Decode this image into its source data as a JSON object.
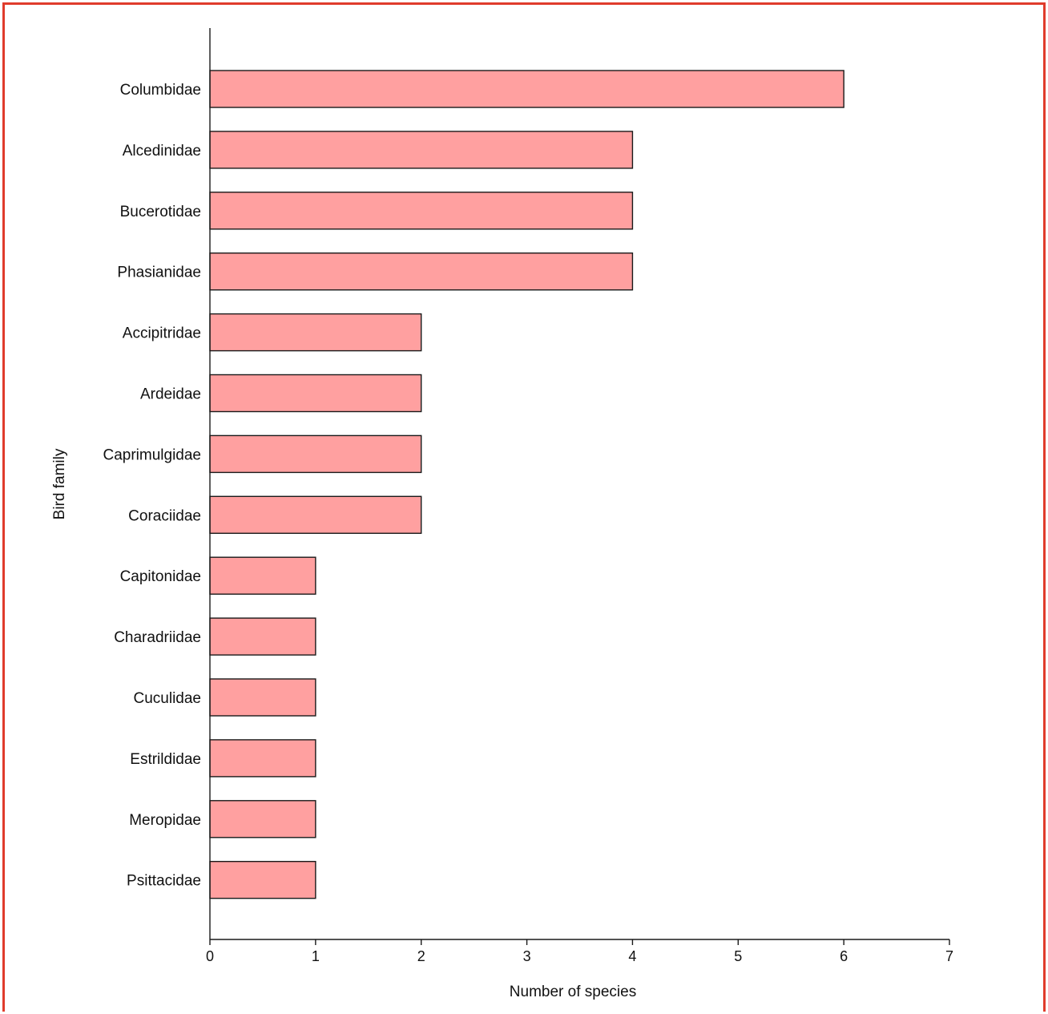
{
  "colors": {
    "frame": "#e03c2c",
    "bar_fill": "#ffa0a0",
    "bar_stroke": "#1a1a1a",
    "axis": "#1a1a1a"
  },
  "chart_data": {
    "type": "bar",
    "orientation": "horizontal",
    "categories": [
      "Columbidae",
      "Alcedinidae",
      "Bucerotidae",
      "Phasianidae",
      "Accipitridae",
      "Ardeidae",
      "Caprimulgidae",
      "Coraciidae",
      "Capitonidae",
      "Charadriidae",
      "Cuculidae",
      "Estrildidae",
      "Meropidae",
      "Psittacidae"
    ],
    "values": [
      6,
      4,
      4,
      4,
      2,
      2,
      2,
      2,
      1,
      1,
      1,
      1,
      1,
      1
    ],
    "xlabel": "Number of species",
    "ylabel": "Bird family",
    "xlim": [
      0,
      7
    ],
    "xticks": [
      "0",
      "1",
      "2",
      "3",
      "4",
      "5",
      "6",
      "7"
    ],
    "grid": false,
    "legend": "none"
  }
}
